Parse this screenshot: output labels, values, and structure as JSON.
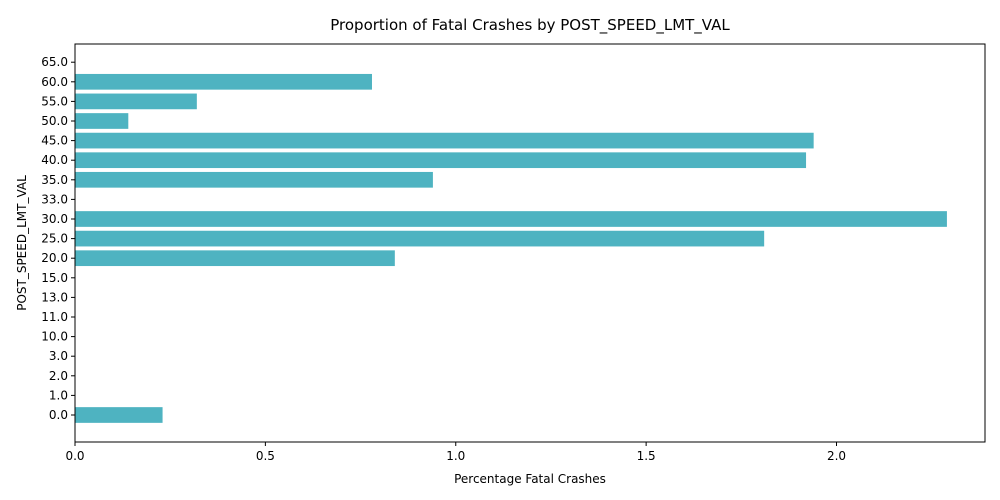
{
  "chart_data": {
    "type": "bar",
    "orientation": "horizontal",
    "title": "Proportion of Fatal Crashes by POST_SPEED_LMT_VAL",
    "xlabel": "Percentage Fatal Crashes",
    "ylabel": "POST_SPEED_LMT_VAL",
    "categories": [
      "0.0",
      "1.0",
      "2.0",
      "3.0",
      "10.0",
      "11.0",
      "13.0",
      "15.0",
      "20.0",
      "25.0",
      "30.0",
      "33.0",
      "35.0",
      "40.0",
      "45.0",
      "50.0",
      "55.0",
      "60.0",
      "65.0"
    ],
    "values": [
      0.23,
      0,
      0,
      0,
      0,
      0,
      0,
      0,
      0.84,
      1.81,
      2.29,
      0,
      0.94,
      1.92,
      1.94,
      0.14,
      0.32,
      0.78,
      0
    ],
    "xlim": [
      0,
      2.39
    ],
    "xticks": [
      "0.0",
      "0.5",
      "1.0",
      "1.5",
      "2.0"
    ],
    "bar_color": "#4eb3c1",
    "grid": false,
    "legend": "none"
  }
}
